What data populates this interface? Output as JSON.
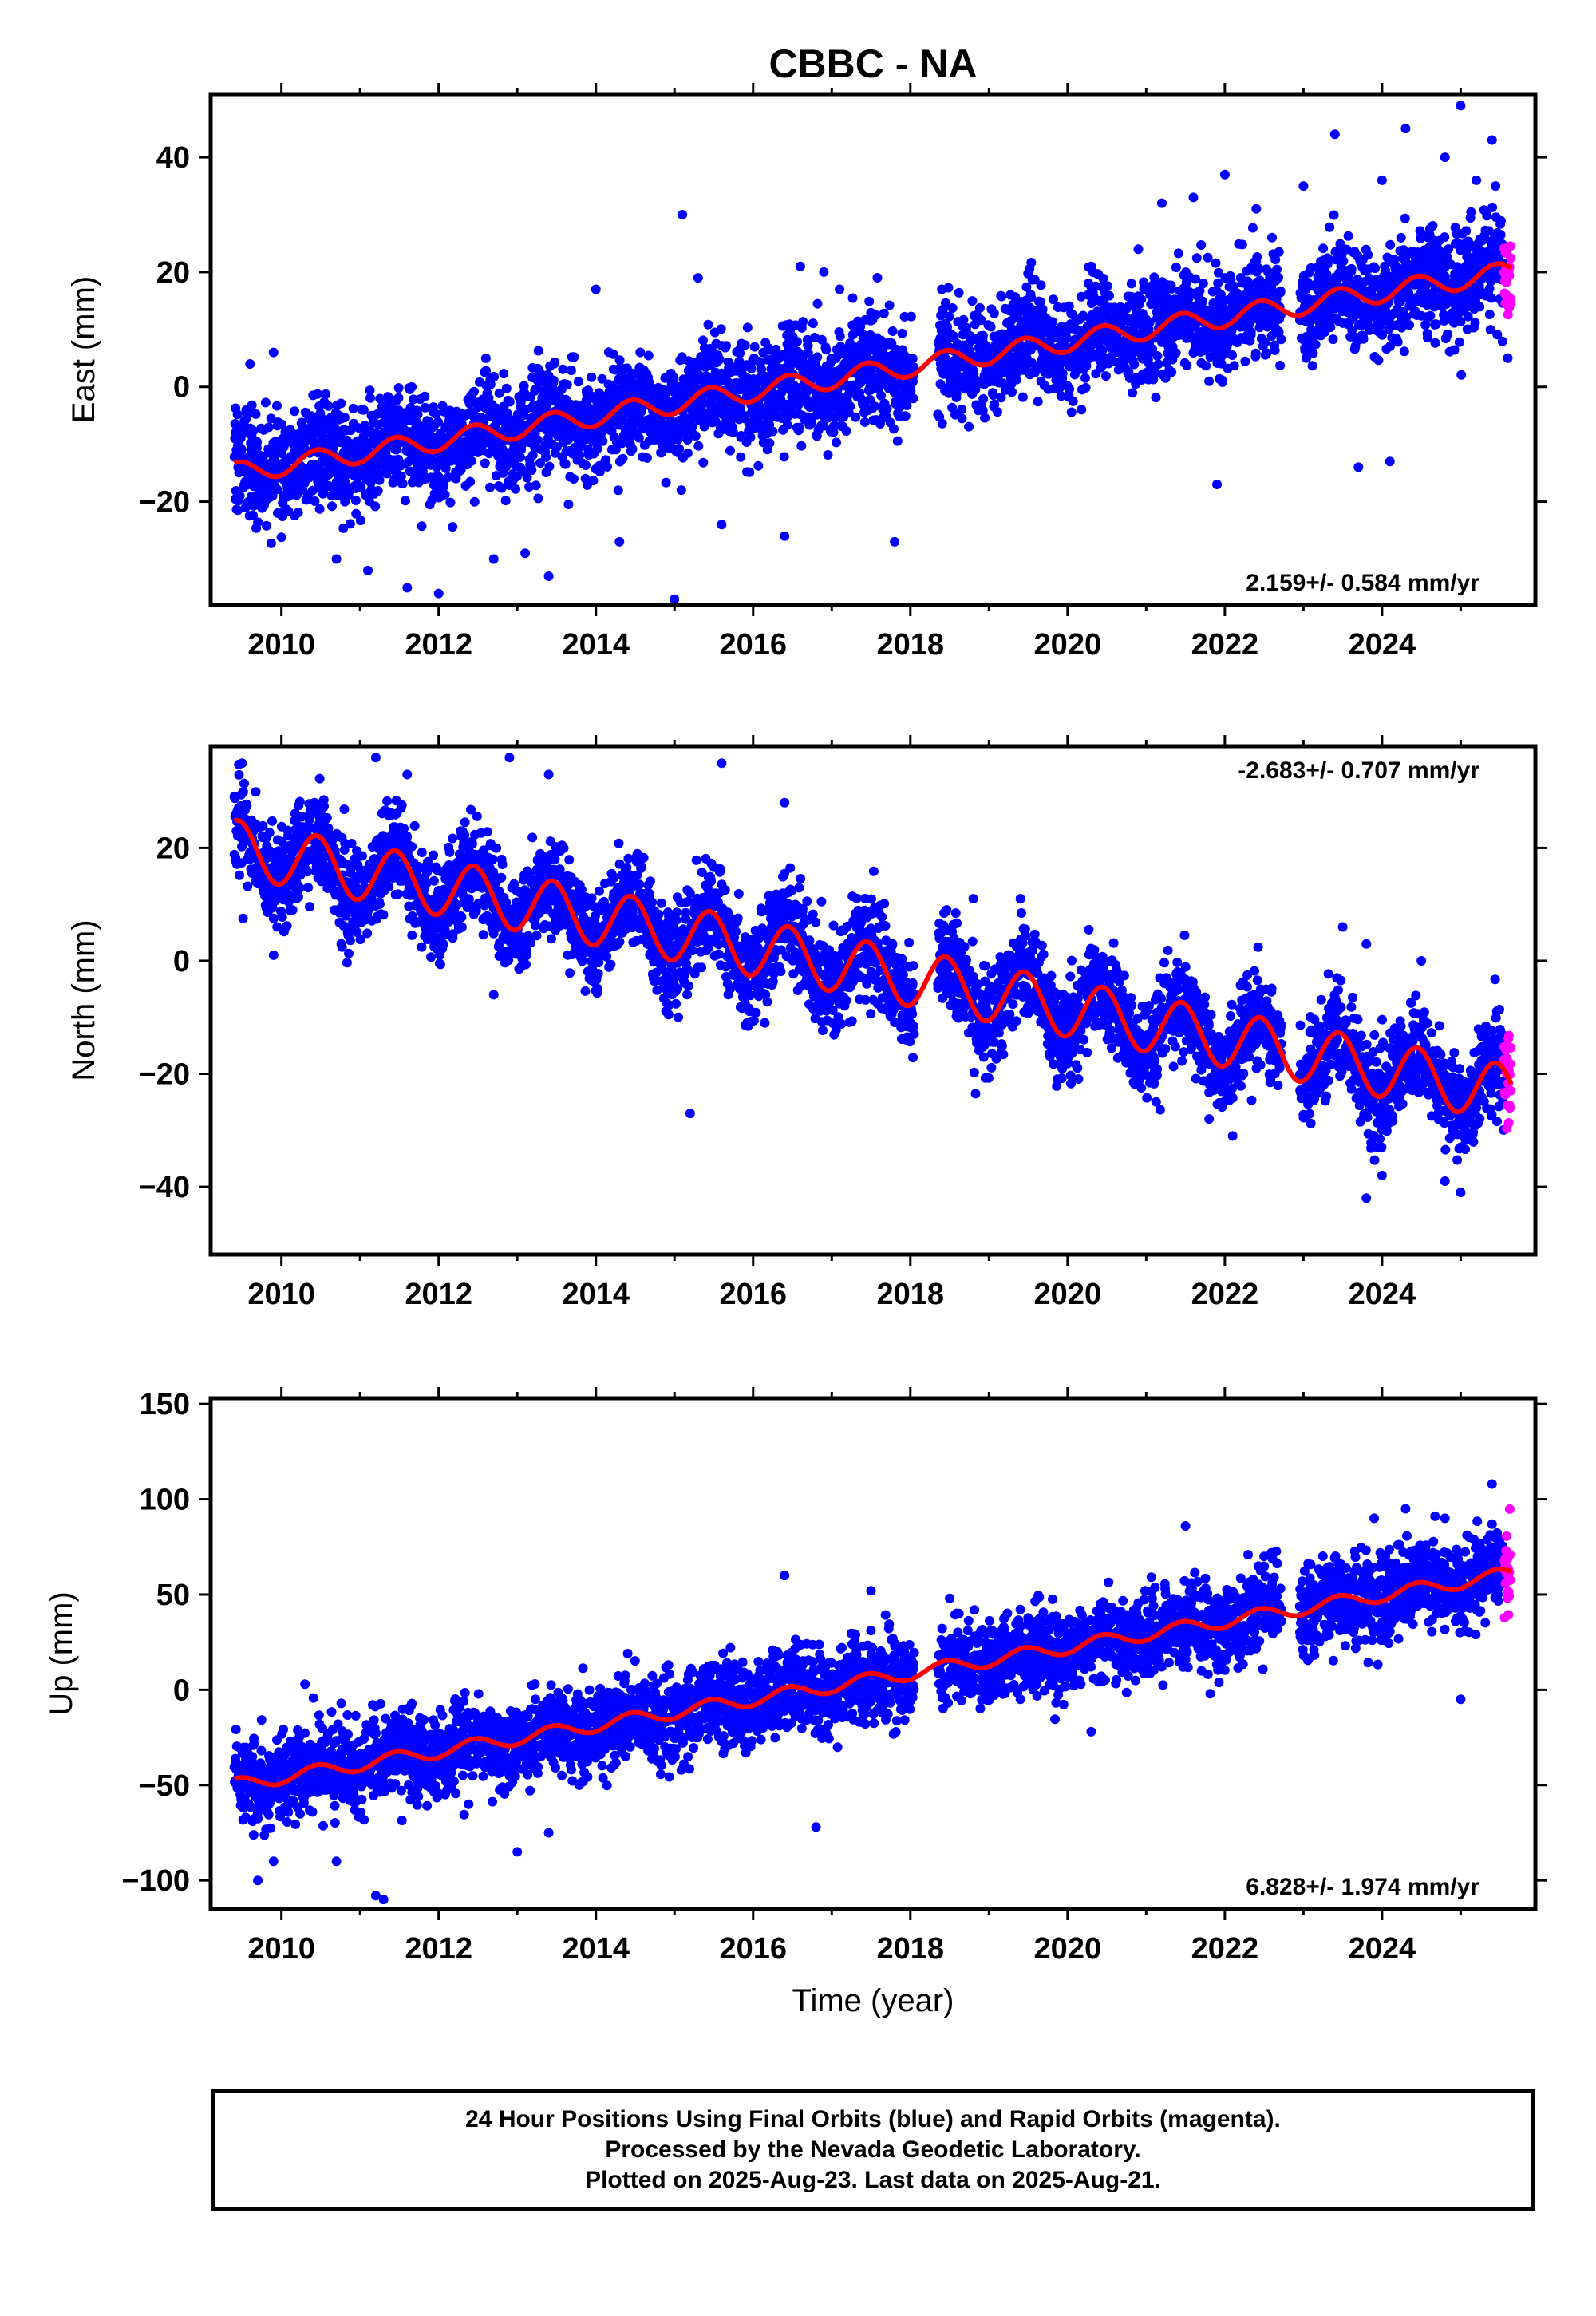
{
  "figure": {
    "title": "CBBC - NA",
    "xlabel": "Time (year)",
    "caption": {
      "line1": "24 Hour Positions Using Final Orbits (blue) and Rapid Orbits (magenta).",
      "line2": "Processed by the Nevada Geodetic Laboratory.",
      "line3": "Plotted on 2025-Aug-23. Last data on 2025-Aug-21."
    },
    "colors": {
      "final_orbits": "#0000ff",
      "rapid_orbits": "#ff00ff",
      "model": "#ff0000"
    }
  },
  "chart_data": [
    {
      "type": "scatter",
      "component": "east",
      "ylabel": "East (mm)",
      "rate_text": "2.159+/- 0.584 mm/yr",
      "xlim": [
        2009.1,
        2025.95
      ],
      "ylim": [
        -38,
        51
      ],
      "xticks": [
        2010,
        2012,
        2014,
        2016,
        2018,
        2020,
        2022,
        2024
      ],
      "yticks": [
        -20,
        0,
        20,
        40
      ],
      "data_start": 2009.4,
      "data_end": 2025.64,
      "rapid_start": 2025.55,
      "rate_mm_per_yr": 2.159,
      "model_at_start": -15.0,
      "annual_amplitude": 1.8,
      "scatter_std": 4.5,
      "gaps": [
        [
          2018.05,
          2018.35
        ],
        [
          2022.72,
          2022.95
        ]
      ],
      "outliers": [
        [
          2009.6,
          4
        ],
        [
          2009.9,
          6
        ],
        [
          2010.7,
          -30
        ],
        [
          2011.1,
          -32
        ],
        [
          2011.6,
          -35
        ],
        [
          2012.0,
          -36
        ],
        [
          2012.7,
          -30
        ],
        [
          2013.1,
          -29
        ],
        [
          2013.4,
          -33
        ],
        [
          2014.0,
          17
        ],
        [
          2014.3,
          -27
        ],
        [
          2015.0,
          -37
        ],
        [
          2015.1,
          30
        ],
        [
          2015.3,
          19
        ],
        [
          2015.6,
          -24
        ],
        [
          2016.4,
          -26
        ],
        [
          2016.6,
          21
        ],
        [
          2016.9,
          20
        ],
        [
          2017.1,
          17
        ],
        [
          2017.8,
          -27
        ],
        [
          2018.4,
          17
        ],
        [
          2020.3,
          21
        ],
        [
          2020.9,
          24
        ],
        [
          2021.2,
          32
        ],
        [
          2021.6,
          33
        ],
        [
          2021.9,
          -17
        ],
        [
          2022.0,
          37
        ],
        [
          2022.4,
          31
        ],
        [
          2022.6,
          26
        ],
        [
          2023.0,
          35
        ],
        [
          2023.4,
          44
        ],
        [
          2023.7,
          -14
        ],
        [
          2024.0,
          36
        ],
        [
          2024.1,
          -13
        ],
        [
          2024.3,
          45
        ],
        [
          2024.8,
          40
        ],
        [
          2025.0,
          49
        ],
        [
          2025.2,
          36
        ],
        [
          2025.4,
          43
        ],
        [
          2025.6,
          5
        ]
      ]
    },
    {
      "type": "scatter",
      "component": "north",
      "ylabel": "North (mm)",
      "rate_text": "-2.683+/- 0.707 mm/yr",
      "xlim": [
        2009.1,
        2025.95
      ],
      "ylim": [
        -52,
        38
      ],
      "xticks": [
        2010,
        2012,
        2014,
        2016,
        2018,
        2020,
        2022,
        2024
      ],
      "yticks": [
        -40,
        -20,
        0,
        20
      ],
      "data_start": 2009.4,
      "data_end": 2025.64,
      "rapid_start": 2025.55,
      "rate_mm_per_yr": -2.683,
      "model_at_start": 20.0,
      "annual_amplitude": 5.0,
      "scatter_std": 4.3,
      "gaps": [
        [
          2018.05,
          2018.35
        ],
        [
          2022.72,
          2022.95
        ]
      ],
      "outliers": [
        [
          2009.5,
          35
        ],
        [
          2009.9,
          1
        ],
        [
          2011.2,
          36
        ],
        [
          2011.6,
          33
        ],
        [
          2012.7,
          -6
        ],
        [
          2012.9,
          36
        ],
        [
          2013.4,
          33
        ],
        [
          2015.2,
          -27
        ],
        [
          2015.6,
          35
        ],
        [
          2016.4,
          28
        ],
        [
          2018.0,
          -11
        ],
        [
          2018.8,
          11
        ],
        [
          2019.4,
          11
        ],
        [
          2021.8,
          -28
        ],
        [
          2022.1,
          -31
        ],
        [
          2023.5,
          6
        ],
        [
          2023.8,
          3
        ],
        [
          2023.8,
          -42
        ],
        [
          2024.0,
          -38
        ],
        [
          2024.5,
          0
        ],
        [
          2024.8,
          -39
        ],
        [
          2025.0,
          -41
        ]
      ]
    },
    {
      "type": "scatter",
      "component": "up",
      "ylabel": "Up (mm)",
      "rate_text": "6.828+/- 1.974 mm/yr",
      "xlim": [
        2009.1,
        2025.95
      ],
      "ylim": [
        -115,
        153
      ],
      "xticks": [
        2010,
        2012,
        2014,
        2016,
        2018,
        2020,
        2022,
        2024
      ],
      "yticks": [
        -100,
        -50,
        0,
        50,
        100,
        150
      ],
      "data_start": 2009.4,
      "data_end": 2025.64,
      "rapid_start": 2025.55,
      "rate_mm_per_yr": 6.828,
      "model_at_start": -50.0,
      "annual_amplitude": 3.5,
      "scatter_std": 11.0,
      "gaps": [
        [
          2018.05,
          2018.35
        ],
        [
          2022.72,
          2022.95
        ]
      ],
      "outliers": [
        [
          2009.7,
          -100
        ],
        [
          2009.9,
          -90
        ],
        [
          2010.3,
          3
        ],
        [
          2010.7,
          -90
        ],
        [
          2011.2,
          -108
        ],
        [
          2011.3,
          -110
        ],
        [
          2013.0,
          -85
        ],
        [
          2013.4,
          -75
        ],
        [
          2016.4,
          60
        ],
        [
          2016.8,
          -72
        ],
        [
          2017.5,
          52
        ],
        [
          2018.5,
          48
        ],
        [
          2019.4,
          -5
        ],
        [
          2020.3,
          -22
        ],
        [
          2021.5,
          86
        ],
        [
          2022.5,
          70
        ],
        [
          2023.9,
          90
        ],
        [
          2024.3,
          95
        ],
        [
          2024.8,
          90
        ],
        [
          2025.0,
          -5
        ],
        [
          2025.4,
          108
        ]
      ]
    }
  ]
}
